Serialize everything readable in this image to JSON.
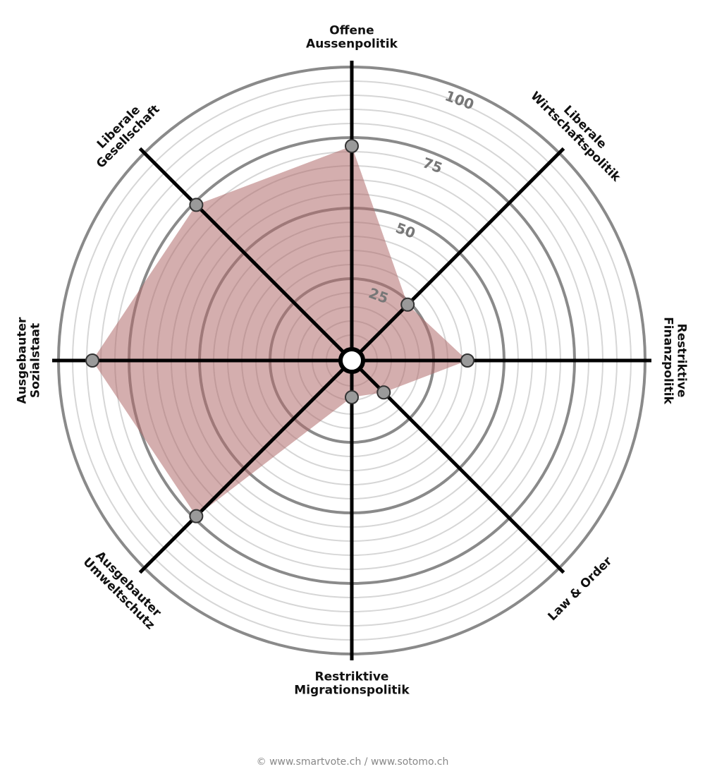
{
  "chart_data": {
    "type": "radar",
    "categories": [
      [
        "Offene",
        "Aussenpolitik"
      ],
      [
        "Liberale",
        "Wirtschaftspolitik"
      ],
      [
        "Restriktive",
        "Finanzpolitik"
      ],
      [
        "Law & Order"
      ],
      [
        "Restriktive",
        "Migrationspolitik"
      ],
      [
        "Ausgebauter",
        "Umweltschutz"
      ],
      [
        "Ausgebauter",
        "Sozialstaat"
      ],
      [
        "Liberale",
        "Gesellschaft"
      ]
    ],
    "values": [
      72,
      24,
      37,
      12,
      9,
      74,
      88,
      74
    ],
    "color": "#b06c6c",
    "ylim": [
      0,
      100
    ],
    "yticks": [
      25,
      50,
      75,
      100
    ],
    "grid": true
  },
  "footer": "© www.smartvote.ch / www.sotomo.ch"
}
